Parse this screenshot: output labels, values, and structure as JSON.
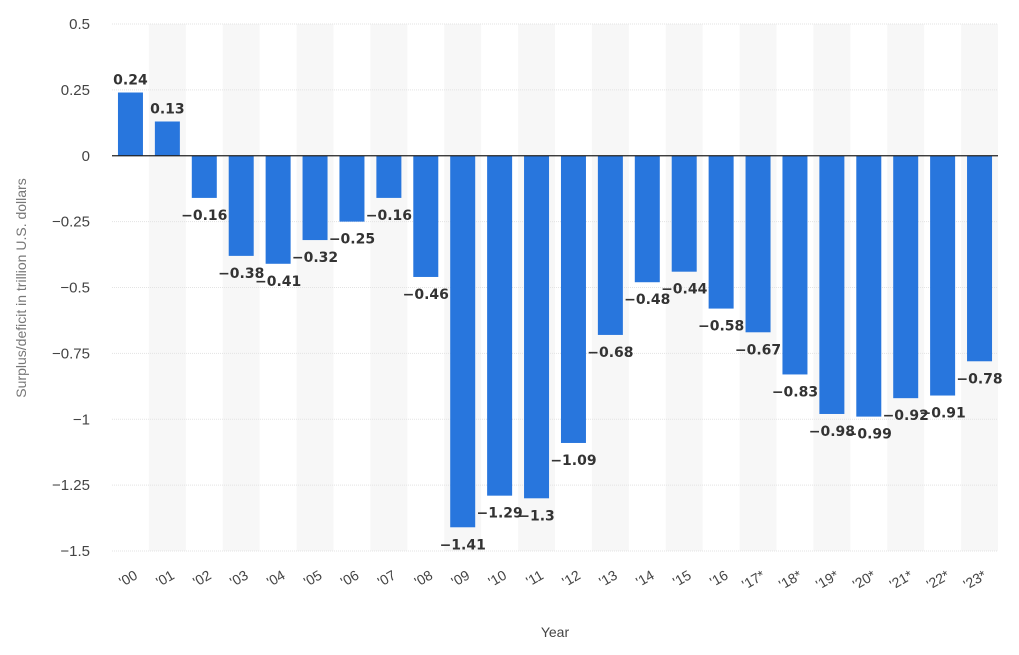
{
  "chart_data": {
    "type": "bar",
    "title": "",
    "xlabel": "Year",
    "ylabel": "Surplus/deficit in trillion U.S. dollars",
    "ylim": [
      -1.5,
      0.5
    ],
    "yticks": [
      0.5,
      0.25,
      0,
      -0.25,
      -0.5,
      -0.75,
      -1,
      -1.25,
      -1.5
    ],
    "ytick_labels": [
      "0.5",
      "0.25",
      "0",
      "−0.25",
      "−0.5",
      "−0.75",
      "−1",
      "−1.25",
      "−1.5"
    ],
    "categories": [
      "'00",
      "'01",
      "'02",
      "'03",
      "'04",
      "'05",
      "'06",
      "'07",
      "'08",
      "'09",
      "'10",
      "'11",
      "'12",
      "'13",
      "'14",
      "'15",
      "'16",
      "'17*",
      "'18*",
      "'19*",
      "'20*",
      "'21*",
      "'22*",
      "'23*"
    ],
    "values": [
      0.24,
      0.13,
      -0.16,
      -0.38,
      -0.41,
      -0.32,
      -0.25,
      -0.16,
      -0.46,
      -1.41,
      -1.29,
      -1.3,
      -1.09,
      -0.68,
      -0.48,
      -0.44,
      -0.58,
      -0.67,
      -0.83,
      -0.98,
      -0.99,
      -0.92,
      -0.91,
      -0.78
    ],
    "value_labels": [
      "0.24",
      "0.13",
      "−0.16",
      "−0.38",
      "−0.41",
      "−0.32",
      "−0.25",
      "−0.16",
      "−0.46",
      "−1.41",
      "−1.29",
      "−1.3",
      "−1.09",
      "−0.68",
      "−0.48",
      "−0.44",
      "−0.58",
      "−0.67",
      "−0.83",
      "−0.98",
      "−0.99",
      "−0.92",
      "−0.91",
      "−0.78"
    ],
    "grid": true,
    "alternating_column_shading": true,
    "colors": {
      "bar": "#2876dd",
      "zero_line": "#222222",
      "grid": "#e3e3e3",
      "band": "#f7f7f7"
    }
  }
}
